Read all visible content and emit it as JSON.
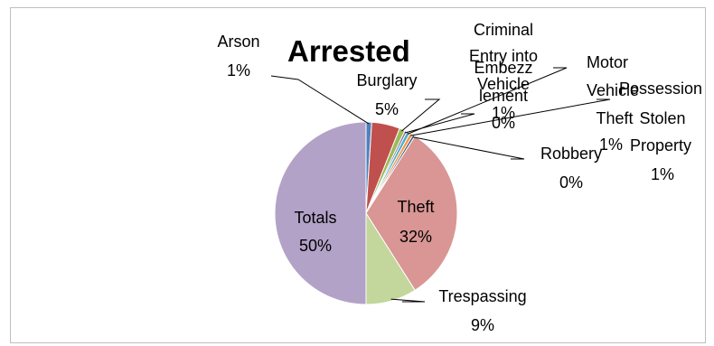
{
  "chart_data": {
    "type": "pie",
    "title": "Arrested",
    "legend": "none",
    "slices": [
      {
        "label": "Arson",
        "value": 1,
        "percent_label": "1%",
        "color": "#4f81bd"
      },
      {
        "label": "Burglary",
        "value": 5,
        "percent_label": "5%",
        "color": "#c0504d"
      },
      {
        "label": "Criminal Entry into Vehicle",
        "value": 1,
        "percent_label": "1%",
        "color": "#9bbb59"
      },
      {
        "label": "Embezzlement",
        "value": 0.4,
        "percent_label": "0%",
        "color": "#8064a2"
      },
      {
        "label": "Motor Vehicle Theft",
        "value": 0.6,
        "percent_label": "1%",
        "color": "#4bacc6"
      },
      {
        "label": "Possession Stolen Property",
        "value": 0.6,
        "percent_label": "1%",
        "color": "#f79646"
      },
      {
        "label": "Robbery",
        "value": 0.4,
        "percent_label": "0%",
        "color": "#2c4d75"
      },
      {
        "label": "Theft",
        "value": 32,
        "percent_label": "32%",
        "color": "#d99694"
      },
      {
        "label": "Trespassing",
        "value": 9,
        "percent_label": "9%",
        "color": "#c3d69b"
      },
      {
        "label": "Totals",
        "value": 50,
        "percent_label": "50%",
        "color": "#b3a2c7"
      }
    ]
  }
}
